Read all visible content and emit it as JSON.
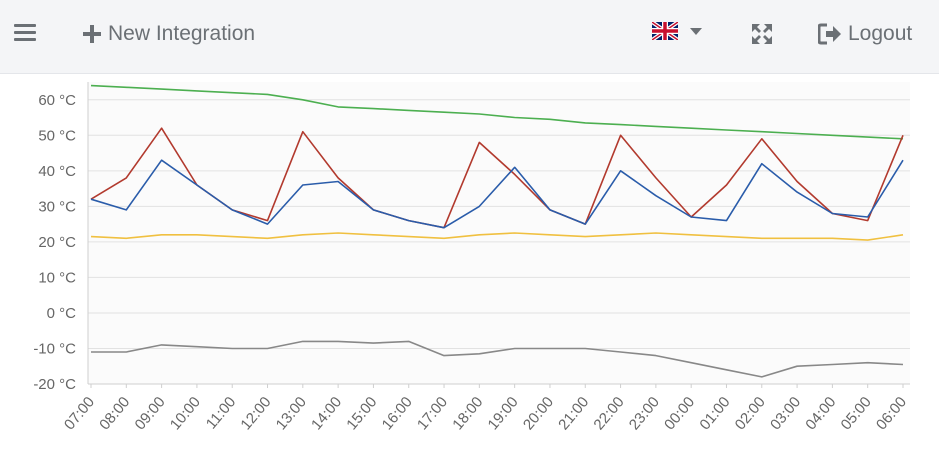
{
  "header": {
    "menu_icon": "hamburger-menu-icon",
    "new_integration_label": "New Integration",
    "language_icon": "uk-flag-icon",
    "fullscreen_icon": "expand-icon",
    "logout_label": "Logout",
    "text_color": "#6b7075"
  },
  "chart_data": {
    "type": "line",
    "yunit": "°C",
    "ylim": [
      -20,
      65
    ],
    "yticks": [
      -20,
      -10,
      0,
      10,
      20,
      30,
      40,
      50,
      60
    ],
    "ytick_labels": [
      "-20 °C",
      "-10 °C",
      "0 °C",
      "10 °C",
      "20 °C",
      "30 °C",
      "40 °C",
      "50 °C",
      "60 °C"
    ],
    "x": [
      "07:00",
      "08:00",
      "09:00",
      "10:00",
      "11:00",
      "12:00",
      "13:00",
      "14:00",
      "15:00",
      "16:00",
      "17:00",
      "18:00",
      "19:00",
      "20:00",
      "21:00",
      "22:00",
      "23:00",
      "00:00",
      "01:00",
      "02:00",
      "03:00",
      "04:00",
      "05:00",
      "06:00"
    ],
    "grid": true,
    "series": [
      {
        "color": "#4caf50",
        "values": [
          64,
          63.5,
          63,
          62.5,
          62,
          61.5,
          60,
          58,
          57.5,
          57,
          56.5,
          56,
          55,
          54.5,
          53.5,
          53,
          52.5,
          52,
          51.5,
          51,
          50.5,
          50,
          49.5,
          49
        ]
      },
      {
        "color": "#b23a2e",
        "values": [
          32,
          38,
          52,
          36,
          29,
          26,
          51,
          38,
          29,
          26,
          24,
          48,
          39,
          29,
          25,
          50,
          38,
          27,
          36,
          49,
          37,
          28,
          26,
          50
        ]
      },
      {
        "color": "#2a5caa",
        "values": [
          32,
          29,
          43,
          36,
          29,
          25,
          36,
          37,
          29,
          26,
          24,
          30,
          41,
          29,
          25,
          40,
          33,
          27,
          26,
          42,
          34,
          28,
          27,
          43
        ]
      },
      {
        "color": "#f0c040",
        "values": [
          21.5,
          21,
          22,
          22,
          21.5,
          21,
          22,
          22.5,
          22,
          21.5,
          21,
          22,
          22.5,
          22,
          21.5,
          22,
          22.5,
          22,
          21.5,
          21,
          21,
          21,
          20.5,
          22
        ]
      },
      {
        "color": "#888888",
        "values": [
          -11,
          -11,
          -9,
          -9.5,
          -10,
          -10,
          -8,
          -8,
          -8.5,
          -8,
          -12,
          -11.5,
          -10,
          -10,
          -10,
          -11,
          -12,
          -14,
          -16,
          -18,
          -15,
          -14.5,
          -14,
          -14.5
        ]
      }
    ]
  }
}
